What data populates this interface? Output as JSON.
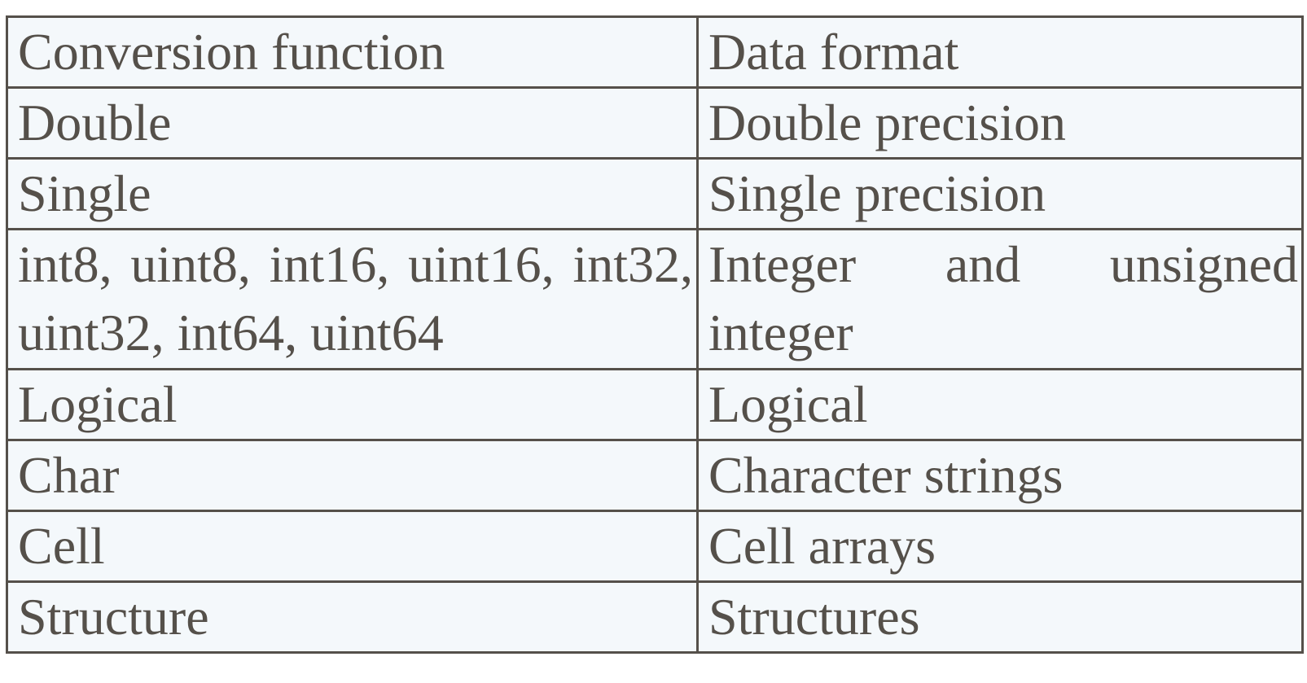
{
  "table": {
    "headers": [
      "Conversion function",
      "Data format"
    ],
    "rows": [
      [
        "Double",
        "Double precision"
      ],
      [
        "Single",
        "Single precision"
      ],
      [
        "int8, uint8, int16, uint16, int32, uint32, int64, uint64",
        "Integer and unsigned integer"
      ],
      [
        "Logical",
        "Logical"
      ],
      [
        "Char",
        "Character strings"
      ],
      [
        "Cell",
        "Cell arrays"
      ],
      [
        "Structure",
        "Structures"
      ]
    ]
  }
}
